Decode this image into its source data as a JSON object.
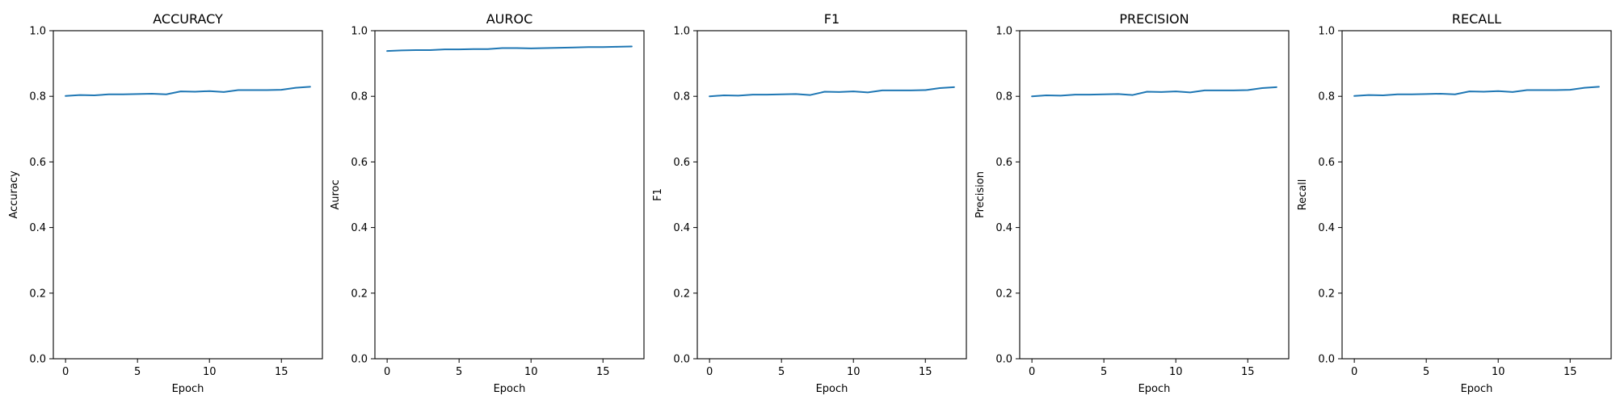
{
  "chart_data": [
    {
      "type": "line",
      "title": "ACCURACY",
      "xlabel": "Epoch",
      "ylabel": "Accuracy",
      "xlim": [
        -0.85,
        17.85
      ],
      "ylim": [
        0.0,
        1.0
      ],
      "xticks": [
        0,
        5,
        10,
        15
      ],
      "yticks": [
        0.0,
        0.2,
        0.4,
        0.6,
        0.8,
        1.0
      ],
      "grid": false,
      "series": [
        {
          "color": "#1f77b4",
          "x": [
            0,
            1,
            2,
            3,
            4,
            5,
            6,
            7,
            8,
            9,
            10,
            11,
            12,
            13,
            14,
            15,
            16,
            17
          ],
          "y": [
            0.801,
            0.804,
            0.803,
            0.806,
            0.806,
            0.807,
            0.808,
            0.806,
            0.815,
            0.814,
            0.816,
            0.813,
            0.819,
            0.819,
            0.819,
            0.82,
            0.826,
            0.829
          ]
        }
      ]
    },
    {
      "type": "line",
      "title": "AUROC",
      "xlabel": "Epoch",
      "ylabel": "Auroc",
      "xlim": [
        -0.85,
        17.85
      ],
      "ylim": [
        0.0,
        1.0
      ],
      "xticks": [
        0,
        5,
        10,
        15
      ],
      "yticks": [
        0.0,
        0.2,
        0.4,
        0.6,
        0.8,
        1.0
      ],
      "grid": false,
      "series": [
        {
          "color": "#1f77b4",
          "x": [
            0,
            1,
            2,
            3,
            4,
            5,
            6,
            7,
            8,
            9,
            10,
            11,
            12,
            13,
            14,
            15,
            16,
            17
          ],
          "y": [
            0.938,
            0.94,
            0.941,
            0.941,
            0.943,
            0.943,
            0.944,
            0.944,
            0.947,
            0.947,
            0.946,
            0.947,
            0.948,
            0.949,
            0.95,
            0.95,
            0.951,
            0.952
          ]
        }
      ]
    },
    {
      "type": "line",
      "title": "F1",
      "xlabel": "Epoch",
      "ylabel": "F1",
      "xlim": [
        -0.85,
        17.85
      ],
      "ylim": [
        0.0,
        1.0
      ],
      "xticks": [
        0,
        5,
        10,
        15
      ],
      "yticks": [
        0.0,
        0.2,
        0.4,
        0.6,
        0.8,
        1.0
      ],
      "grid": false,
      "series": [
        {
          "color": "#1f77b4",
          "x": [
            0,
            1,
            2,
            3,
            4,
            5,
            6,
            7,
            8,
            9,
            10,
            11,
            12,
            13,
            14,
            15,
            16,
            17
          ],
          "y": [
            0.8,
            0.803,
            0.802,
            0.805,
            0.805,
            0.806,
            0.807,
            0.804,
            0.814,
            0.813,
            0.815,
            0.812,
            0.818,
            0.818,
            0.818,
            0.819,
            0.825,
            0.828
          ]
        }
      ]
    },
    {
      "type": "line",
      "title": "PRECISION",
      "xlabel": "Epoch",
      "ylabel": "Precision",
      "xlim": [
        -0.85,
        17.85
      ],
      "ylim": [
        0.0,
        1.0
      ],
      "xticks": [
        0,
        5,
        10,
        15
      ],
      "yticks": [
        0.0,
        0.2,
        0.4,
        0.6,
        0.8,
        1.0
      ],
      "grid": false,
      "series": [
        {
          "color": "#1f77b4",
          "x": [
            0,
            1,
            2,
            3,
            4,
            5,
            6,
            7,
            8,
            9,
            10,
            11,
            12,
            13,
            14,
            15,
            16,
            17
          ],
          "y": [
            0.8,
            0.803,
            0.802,
            0.805,
            0.805,
            0.806,
            0.807,
            0.804,
            0.814,
            0.813,
            0.815,
            0.812,
            0.818,
            0.818,
            0.818,
            0.819,
            0.825,
            0.828
          ]
        }
      ]
    },
    {
      "type": "line",
      "title": "RECALL",
      "xlabel": "Epoch",
      "ylabel": "Recall",
      "xlim": [
        -0.85,
        17.85
      ],
      "ylim": [
        0.0,
        1.0
      ],
      "xticks": [
        0,
        5,
        10,
        15
      ],
      "yticks": [
        0.0,
        0.2,
        0.4,
        0.6,
        0.8,
        1.0
      ],
      "grid": false,
      "series": [
        {
          "color": "#1f77b4",
          "x": [
            0,
            1,
            2,
            3,
            4,
            5,
            6,
            7,
            8,
            9,
            10,
            11,
            12,
            13,
            14,
            15,
            16,
            17
          ],
          "y": [
            0.801,
            0.804,
            0.803,
            0.806,
            0.806,
            0.807,
            0.808,
            0.806,
            0.815,
            0.814,
            0.816,
            0.813,
            0.819,
            0.819,
            0.819,
            0.82,
            0.826,
            0.829
          ]
        }
      ]
    }
  ]
}
